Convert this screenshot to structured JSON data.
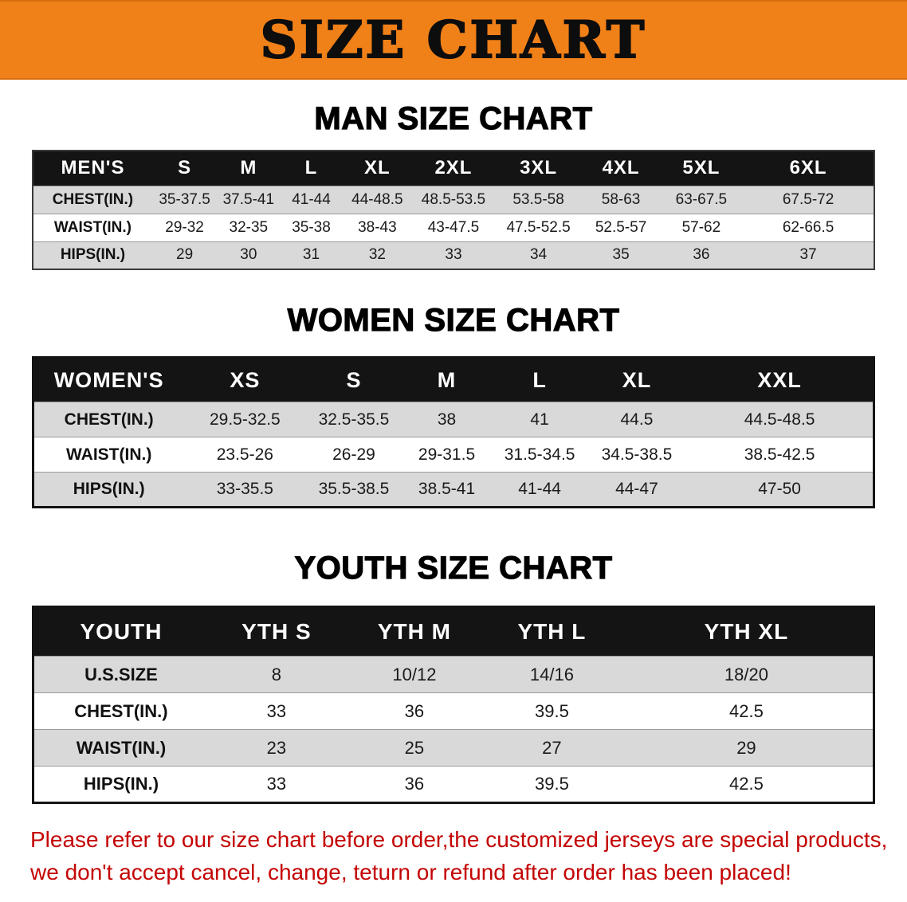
{
  "banner": {
    "title": "SIZE CHART"
  },
  "colors": {
    "banner_bg": "#F08018",
    "table_header_bg": "#141414",
    "shaded_row": "#d9d9d9",
    "disclaimer_text": "#C40404"
  },
  "sections": [
    {
      "heading": "MAN SIZE CHART",
      "table": {
        "header": [
          "MEN'S",
          "S",
          "M",
          "L",
          "XL",
          "2XL",
          "3XL",
          "4XL",
          "5XL",
          "6XL"
        ],
        "rows": [
          {
            "label": "CHEST(IN.)",
            "shaded": true,
            "values": [
              "35-37.5",
              "37.5-41",
              "41-44",
              "44-48.5",
              "48.5-53.5",
              "53.5-58",
              "58-63",
              "63-67.5",
              "67.5-72"
            ]
          },
          {
            "label": "WAIST(IN.)",
            "shaded": false,
            "values": [
              "29-32",
              "32-35",
              "35-38",
              "38-43",
              "43-47.5",
              "47.5-52.5",
              "52.5-57",
              "57-62",
              "62-66.5"
            ]
          },
          {
            "label": "HIPS(IN.)",
            "shaded": true,
            "values": [
              "29",
              "30",
              "31",
              "32",
              "33",
              "34",
              "35",
              "36",
              "37"
            ]
          }
        ]
      }
    },
    {
      "heading": "WOMEN SIZE CHART",
      "table": {
        "header": [
          "WOMEN'S",
          "XS",
          "S",
          "M",
          "L",
          "XL",
          "XXL"
        ],
        "rows": [
          {
            "label": "CHEST(IN.)",
            "shaded": true,
            "values": [
              "29.5-32.5",
              "32.5-35.5",
              "38",
              "41",
              "44.5",
              "44.5-48.5"
            ]
          },
          {
            "label": "WAIST(IN.)",
            "shaded": false,
            "values": [
              "23.5-26",
              "26-29",
              "29-31.5",
              "31.5-34.5",
              "34.5-38.5",
              "38.5-42.5"
            ]
          },
          {
            "label": "HIPS(IN.)",
            "shaded": true,
            "values": [
              "33-35.5",
              "35.5-38.5",
              "38.5-41",
              "41-44",
              "44-47",
              "47-50"
            ]
          }
        ]
      }
    },
    {
      "heading": "YOUTH SIZE CHART",
      "table": {
        "header": [
          "YOUTH",
          "YTH S",
          "YTH M",
          "YTH L",
          "YTH XL"
        ],
        "rows": [
          {
            "label": "U.S.SIZE",
            "shaded": true,
            "values": [
              "8",
              "10/12",
              "14/16",
              "18/20"
            ]
          },
          {
            "label": "CHEST(IN.)",
            "shaded": false,
            "values": [
              "33",
              "36",
              "39.5",
              "42.5"
            ]
          },
          {
            "label": "WAIST(IN.)",
            "shaded": true,
            "values": [
              "23",
              "25",
              "27",
              "29"
            ]
          },
          {
            "label": "HIPS(IN.)",
            "shaded": false,
            "values": [
              "33",
              "36",
              "39.5",
              "42.5"
            ]
          }
        ]
      }
    }
  ],
  "disclaimer": {
    "line1": "Please refer to our size chart before order,the customized jerseys are special products,",
    "line2": "we don't accept cancel, change, teturn or refund after order has been placed!"
  }
}
